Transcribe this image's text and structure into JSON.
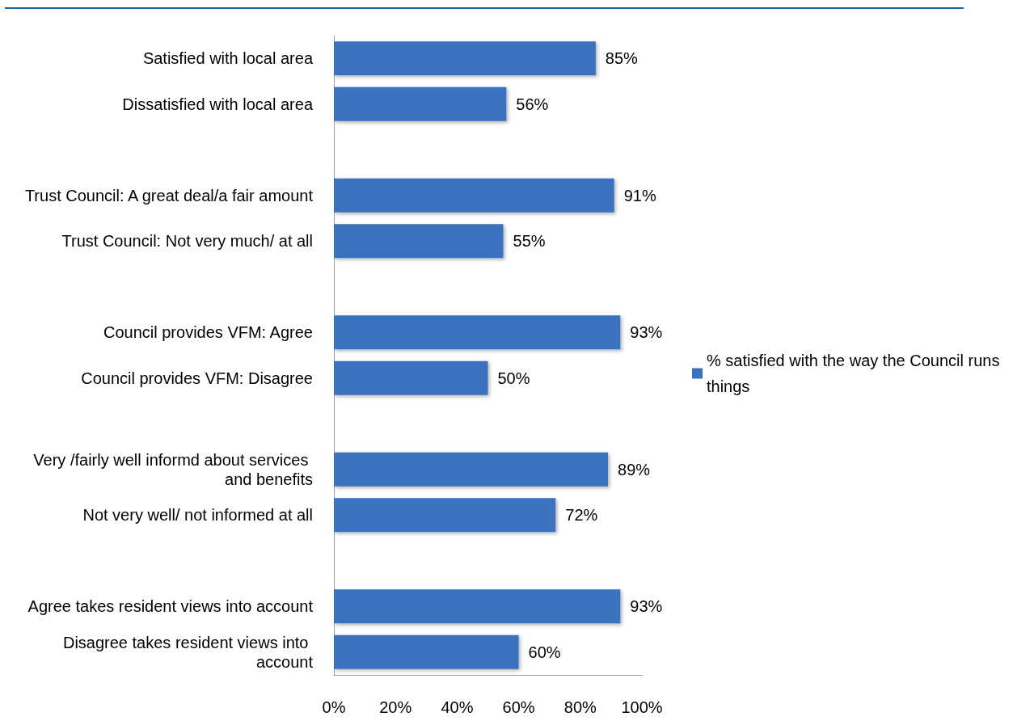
{
  "chart_data": {
    "type": "bar",
    "orientation": "horizontal",
    "categories": [
      "Satisfied with local area",
      "Dissatisfied with local area",
      null,
      "Trust Council: A great deal/a fair amount",
      "Trust Council: Not very much/ at all",
      null,
      "Council provides VFM: Agree",
      "Council provides VFM: Disagree",
      null,
      "Very /fairly well informd about services and benefits",
      "Not very well/ not informed at all",
      null,
      "Agree takes resident views into account",
      "Disagree takes resident views into account"
    ],
    "series": [
      {
        "name": "% satisfied with the way the Council runs things",
        "color": "#3a72bd",
        "values": [
          85,
          56,
          null,
          91,
          55,
          null,
          93,
          50,
          null,
          89,
          72,
          null,
          93,
          60
        ],
        "value_labels": [
          "85%",
          "56%",
          null,
          "91%",
          "55%",
          null,
          "93%",
          "50%",
          null,
          "89%",
          "72%",
          null,
          "93%",
          "60%"
        ]
      }
    ],
    "xlim": [
      0,
      100
    ],
    "xticks": [
      {
        "value": 0,
        "label": "0%"
      },
      {
        "value": 20,
        "label": "20%"
      },
      {
        "value": 40,
        "label": "40%"
      },
      {
        "value": 60,
        "label": "60%"
      },
      {
        "value": 80,
        "label": "80%"
      },
      {
        "value": 100,
        "label": "100%"
      }
    ],
    "grid": false,
    "legend": "right"
  }
}
